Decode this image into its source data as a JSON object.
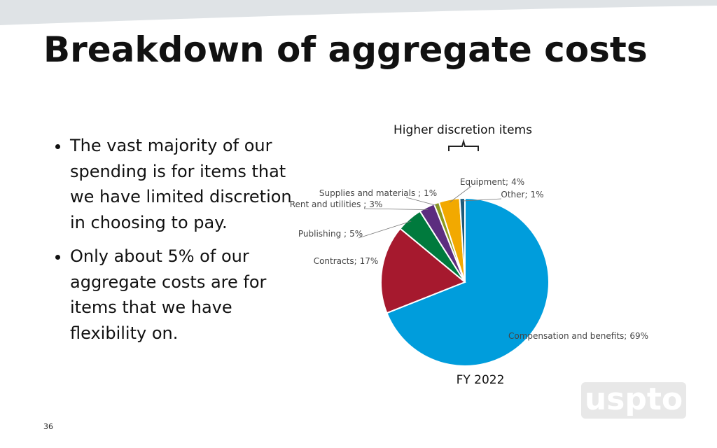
{
  "slide": {
    "title": "Breakdown of aggregate costs",
    "bullets": [
      "The vast majority of our spending is for items that we have limited discretion in choosing to pay.",
      "Only about 5% of our aggregate costs are for items that we have flexibility on."
    ],
    "annotation": "Higher discretion items",
    "page_number": "36",
    "logo": "uspto"
  },
  "chart_data": {
    "type": "pie",
    "title": "FY 2022",
    "categories": [
      "Compensation and benefits;",
      "Contracts;",
      "Publishing ;",
      "Rent and utilities ;",
      "Supplies and materials ;",
      "Equipment;",
      "Other;"
    ],
    "values": [
      69,
      17,
      5,
      3,
      1,
      4,
      1
    ],
    "value_labels": [
      "69%",
      "17%",
      "5%",
      "3%",
      "1%",
      "4%",
      "1%"
    ],
    "colors": [
      "#009ddc",
      "#a6192e",
      "#007a3d",
      "#5c2d7f",
      "#8c9a1e",
      "#f2a900",
      "#1b5a7a"
    ]
  }
}
